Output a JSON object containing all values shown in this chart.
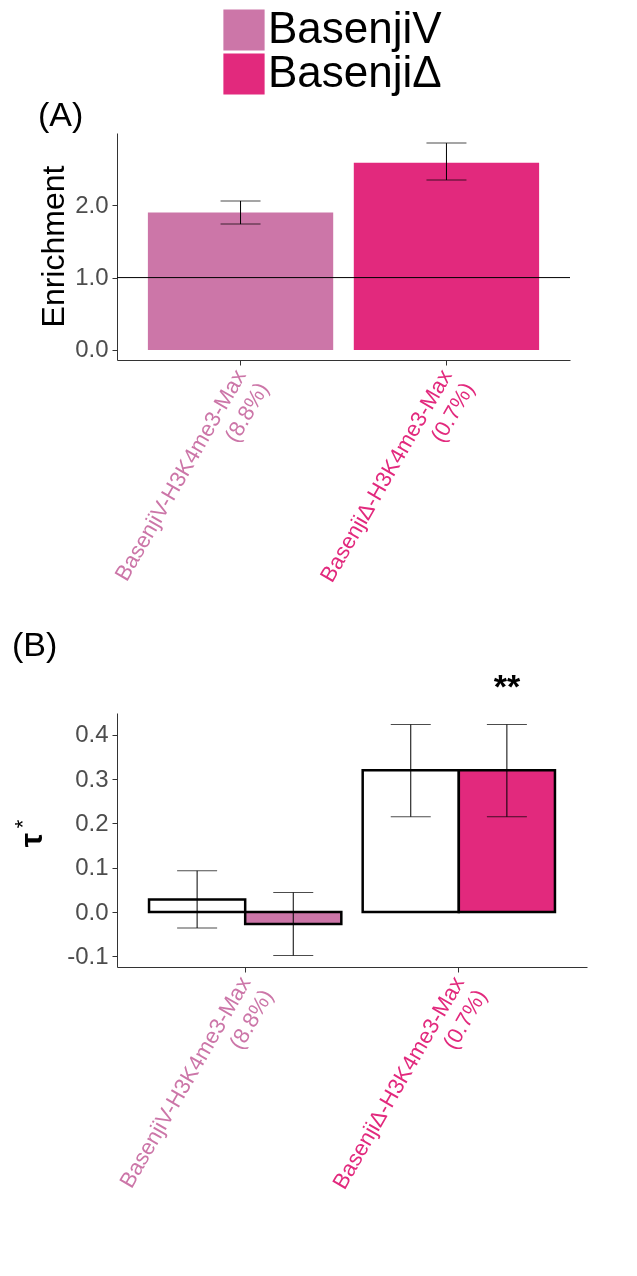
{
  "chart_data": [
    {
      "type": "bar",
      "title": "(A)",
      "ylabel": "Enrichment",
      "categories": [
        "BasenjiV-H3K4me3-Max (8.8%)",
        "BasenjiΔ-H3K4me3-Max (0.7%)"
      ],
      "series": [
        {
          "name": "BasenjiV",
          "color": "#cc76a8",
          "values": [
            1.9,
            null
          ],
          "errors": [
            [
              1.74,
              2.06
            ],
            null
          ]
        },
        {
          "name": "BasenjiΔ",
          "color": "#e2297d",
          "values": [
            null,
            2.59
          ],
          "errors": [
            null,
            [
              2.35,
              2.86
            ]
          ]
        }
      ],
      "ylim": [
        -0.14,
        3.0
      ],
      "yticks": [
        {
          "value": 0,
          "label": "0.0"
        },
        {
          "value": 1,
          "label": "1.0"
        },
        {
          "value": 2,
          "label": "2.0"
        }
      ],
      "ref_lines": [
        {
          "axis": "y",
          "value": 1,
          "color": "#000000"
        }
      ],
      "legend": "top"
    },
    {
      "type": "bar",
      "title": "(B)",
      "ylabel": "τ$^{*}$",
      "categories": [
        "BasenjiV-H3K4me3-Max (8.8%)",
        "BasenjiΔ-H3K4me3-Max (0.7%)"
      ],
      "series": [
        {
          "color": "#ffffff",
          "values": [
            0.028,
            0.32
          ],
          "errors": [
            [
              -0.036,
              0.093
            ],
            [
              0.215,
              0.423
            ]
          ]
        },
        {
          "colors": [
            "#cc76a8",
            "#e2297d"
          ],
          "values": [
            -0.027,
            0.32
          ],
          "errors": [
            [
              -0.098,
              0.044
            ],
            [
              0.215,
              0.423
            ]
          ]
        }
      ],
      "ylim": [
        -0.124,
        0.449
      ],
      "yticks": [
        {
          "value": -0.1,
          "label": "-0.1"
        },
        {
          "value": 0,
          "label": "0.0"
        },
        {
          "value": 0.1,
          "label": "0.1"
        },
        {
          "value": 0.2,
          "label": "0.2"
        },
        {
          "value": 0.3,
          "label": "0.3"
        },
        {
          "value": 0.4,
          "label": "0.4"
        }
      ],
      "annotations": [
        "**"
      ],
      "legend": false
    }
  ]
}
